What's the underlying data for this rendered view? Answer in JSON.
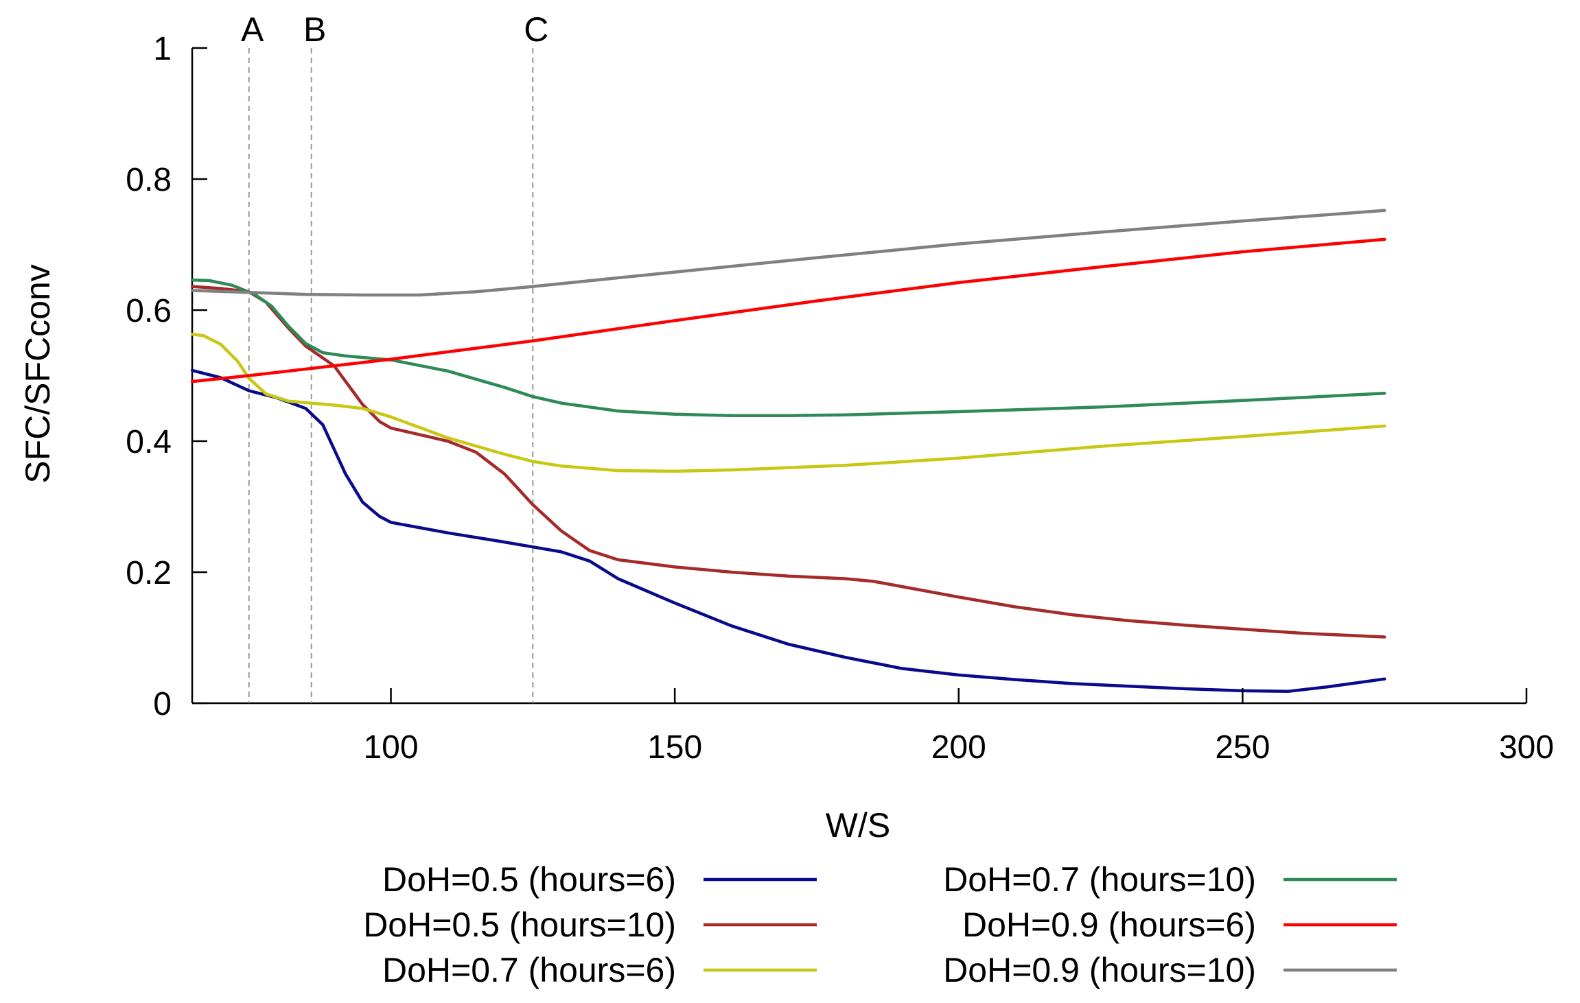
{
  "chart_data": {
    "type": "line",
    "xlabel": "W/S",
    "ylabel": "SFC/SFCconv",
    "xlim": [
      65,
      300
    ],
    "ylim": [
      0,
      1
    ],
    "x_ticks": [
      100,
      150,
      200,
      250,
      300
    ],
    "y_ticks": [
      0,
      0.2,
      0.4,
      0.6,
      0.8,
      1
    ],
    "x_tick_labels": [
      "100",
      "150",
      "200",
      "250",
      "300"
    ],
    "y_tick_labels": [
      "0",
      "0.2",
      "0.4",
      "0.6",
      "0.8",
      "1"
    ],
    "grid": false,
    "legend_position": "bottom",
    "markers": [
      {
        "label": "A",
        "x": 75
      },
      {
        "label": "B",
        "x": 86
      },
      {
        "label": "C",
        "x": 125
      }
    ],
    "series": [
      {
        "name": "DoH=0.5 (hours=6)",
        "color": "#0a0a8c",
        "points": [
          [
            65,
            0.508
          ],
          [
            70,
            0.497
          ],
          [
            75,
            0.477
          ],
          [
            80,
            0.466
          ],
          [
            85,
            0.45
          ],
          [
            88,
            0.425
          ],
          [
            92,
            0.35
          ],
          [
            95,
            0.307
          ],
          [
            98,
            0.285
          ],
          [
            100,
            0.276
          ],
          [
            110,
            0.26
          ],
          [
            120,
            0.246
          ],
          [
            130,
            0.231
          ],
          [
            135,
            0.217
          ],
          [
            140,
            0.19
          ],
          [
            150,
            0.153
          ],
          [
            160,
            0.118
          ],
          [
            170,
            0.09
          ],
          [
            180,
            0.07
          ],
          [
            190,
            0.053
          ],
          [
            200,
            0.043
          ],
          [
            210,
            0.036
          ],
          [
            220,
            0.03
          ],
          [
            230,
            0.026
          ],
          [
            240,
            0.022
          ],
          [
            250,
            0.019
          ],
          [
            258,
            0.018
          ],
          [
            265,
            0.025
          ],
          [
            275,
            0.037
          ]
        ]
      },
      {
        "name": "DoH=0.5 (hours=10)",
        "color": "#a52a2a",
        "points": [
          [
            65,
            0.636
          ],
          [
            70,
            0.633
          ],
          [
            75,
            0.628
          ],
          [
            78,
            0.612
          ],
          [
            82,
            0.572
          ],
          [
            85,
            0.545
          ],
          [
            90,
            0.515
          ],
          [
            95,
            0.456
          ],
          [
            98,
            0.43
          ],
          [
            100,
            0.42
          ],
          [
            110,
            0.4
          ],
          [
            115,
            0.383
          ],
          [
            120,
            0.35
          ],
          [
            125,
            0.303
          ],
          [
            130,
            0.263
          ],
          [
            135,
            0.233
          ],
          [
            140,
            0.219
          ],
          [
            150,
            0.208
          ],
          [
            160,
            0.2
          ],
          [
            170,
            0.194
          ],
          [
            180,
            0.19
          ],
          [
            185,
            0.186
          ],
          [
            190,
            0.178
          ],
          [
            200,
            0.162
          ],
          [
            210,
            0.147
          ],
          [
            220,
            0.135
          ],
          [
            230,
            0.126
          ],
          [
            240,
            0.119
          ],
          [
            250,
            0.113
          ],
          [
            260,
            0.107
          ],
          [
            275,
            0.101
          ]
        ]
      },
      {
        "name": "DoH=0.7 (hours=6)",
        "color": "#c8c814",
        "points": [
          [
            65,
            0.563
          ],
          [
            67,
            0.561
          ],
          [
            70,
            0.548
          ],
          [
            73,
            0.522
          ],
          [
            75,
            0.496
          ],
          [
            78,
            0.472
          ],
          [
            82,
            0.461
          ],
          [
            86,
            0.458
          ],
          [
            90,
            0.455
          ],
          [
            95,
            0.45
          ],
          [
            100,
            0.437
          ],
          [
            110,
            0.405
          ],
          [
            120,
            0.38
          ],
          [
            125,
            0.369
          ],
          [
            130,
            0.362
          ],
          [
            140,
            0.355
          ],
          [
            150,
            0.354
          ],
          [
            160,
            0.356
          ],
          [
            180,
            0.363
          ],
          [
            200,
            0.374
          ],
          [
            225,
            0.392
          ],
          [
            250,
            0.407
          ],
          [
            275,
            0.423
          ]
        ]
      },
      {
        "name": "DoH=0.7 (hours=10)",
        "color": "#2e8b57",
        "points": [
          [
            65,
            0.646
          ],
          [
            68,
            0.645
          ],
          [
            72,
            0.638
          ],
          [
            76,
            0.624
          ],
          [
            79,
            0.606
          ],
          [
            82,
            0.575
          ],
          [
            85,
            0.549
          ],
          [
            88,
            0.535
          ],
          [
            92,
            0.53
          ],
          [
            100,
            0.524
          ],
          [
            110,
            0.507
          ],
          [
            120,
            0.482
          ],
          [
            125,
            0.468
          ],
          [
            130,
            0.458
          ],
          [
            140,
            0.446
          ],
          [
            150,
            0.441
          ],
          [
            160,
            0.439
          ],
          [
            170,
            0.439
          ],
          [
            180,
            0.44
          ],
          [
            200,
            0.445
          ],
          [
            225,
            0.452
          ],
          [
            250,
            0.462
          ],
          [
            275,
            0.473
          ]
        ]
      },
      {
        "name": "DoH=0.9 (hours=6)",
        "color": "#ff0000",
        "points": [
          [
            65,
            0.491
          ],
          [
            75,
            0.5
          ],
          [
            100,
            0.525
          ],
          [
            125,
            0.553
          ],
          [
            150,
            0.584
          ],
          [
            175,
            0.614
          ],
          [
            200,
            0.642
          ],
          [
            225,
            0.666
          ],
          [
            250,
            0.689
          ],
          [
            275,
            0.708
          ]
        ]
      },
      {
        "name": "DoH=0.9 (hours=10)",
        "color": "#808080",
        "points": [
          [
            65,
            0.63
          ],
          [
            75,
            0.627
          ],
          [
            85,
            0.624
          ],
          [
            95,
            0.623
          ],
          [
            105,
            0.623
          ],
          [
            115,
            0.628
          ],
          [
            125,
            0.636
          ],
          [
            150,
            0.658
          ],
          [
            175,
            0.68
          ],
          [
            200,
            0.701
          ],
          [
            225,
            0.719
          ],
          [
            250,
            0.736
          ],
          [
            275,
            0.752
          ]
        ]
      }
    ]
  }
}
